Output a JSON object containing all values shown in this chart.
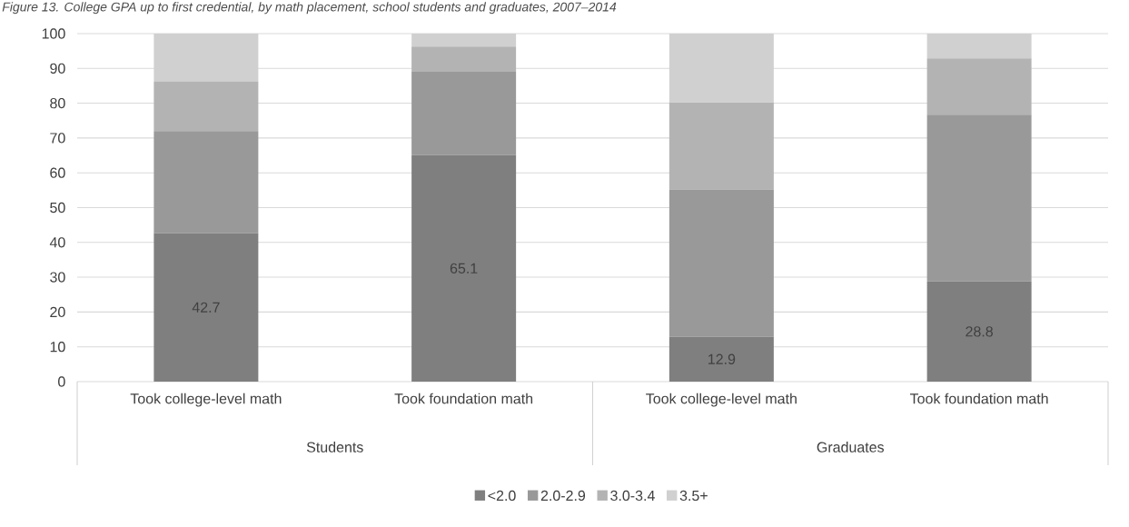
{
  "chart_data": {
    "type": "bar",
    "stacked": true,
    "title": "Figure 13. College GPA up to first credential, by math placement, school students and graduates, 2007–2014",
    "categories": [
      "Took college-level math",
      "Took foundation math",
      "Took college-level math",
      "Took foundation math"
    ],
    "annotations": [
      "Students",
      "Graduates"
    ],
    "series": [
      {
        "name": "<2.0",
        "color": "#7f7f7f",
        "values": [
          42.7,
          65.1,
          12.9,
          28.8
        ],
        "value_labels": [
          "42.7",
          "65.1",
          "12.9",
          "28.8"
        ]
      },
      {
        "name": "2.0-2.9",
        "color": "#999999",
        "values": [
          29.3,
          23.9,
          42.3,
          47.9
        ]
      },
      {
        "name": "3.0-3.4",
        "color": "#b3b3b3",
        "values": [
          14.3,
          7.3,
          25.0,
          16.2
        ]
      },
      {
        "name": "3.5+",
        "color": "#d0d0d0",
        "values": [
          13.7,
          3.7,
          19.8,
          7.1
        ]
      }
    ],
    "ylim": [
      0,
      100
    ],
    "yticks": [
      0,
      10,
      20,
      30,
      40,
      50,
      60,
      70,
      80,
      90,
      100
    ],
    "grid": "y",
    "legend": "bottom"
  }
}
